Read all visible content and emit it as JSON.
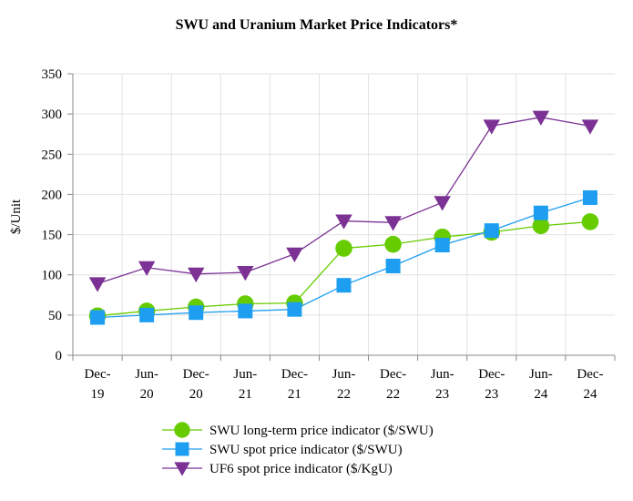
{
  "chart_data": {
    "type": "line",
    "title": "SWU and Uranium Market Price Indicators*",
    "ylabel": "$/Unit",
    "xlabel": "",
    "ylim": [
      0,
      350
    ],
    "yticks": [
      0,
      50,
      100,
      150,
      200,
      250,
      300,
      350
    ],
    "categories": [
      [
        "Dec-",
        "19"
      ],
      [
        "Jun-",
        "20"
      ],
      [
        "Dec-",
        "20"
      ],
      [
        "Jun-",
        "21"
      ],
      [
        "Dec-",
        "21"
      ],
      [
        "Jun-",
        "22"
      ],
      [
        "Dec-",
        "22"
      ],
      [
        "Jun-",
        "23"
      ],
      [
        "Dec-",
        "23"
      ],
      [
        "Jun-",
        "24"
      ],
      [
        "Dec-",
        "24"
      ]
    ],
    "grid": true,
    "legend_position": "bottom",
    "series": [
      {
        "name": "SWU long-term price indicator ($/SWU)",
        "color": "#66cc00",
        "marker": "circle",
        "values": [
          49,
          55,
          60,
          64,
          65,
          133,
          138,
          147,
          153,
          161,
          166
        ]
      },
      {
        "name": "SWU spot price indicator ($/SWU)",
        "color": "#1e9ef0",
        "marker": "square",
        "values": [
          47,
          50,
          53,
          55,
          57,
          87,
          111,
          137,
          155,
          177,
          196
        ]
      },
      {
        "name": "UF6 spot price indicator ($/KgU)",
        "color": "#7b3294",
        "marker": "triangle-down",
        "values": [
          89,
          109,
          101,
          103,
          126,
          167,
          165,
          190,
          285,
          296,
          285
        ]
      }
    ]
  }
}
